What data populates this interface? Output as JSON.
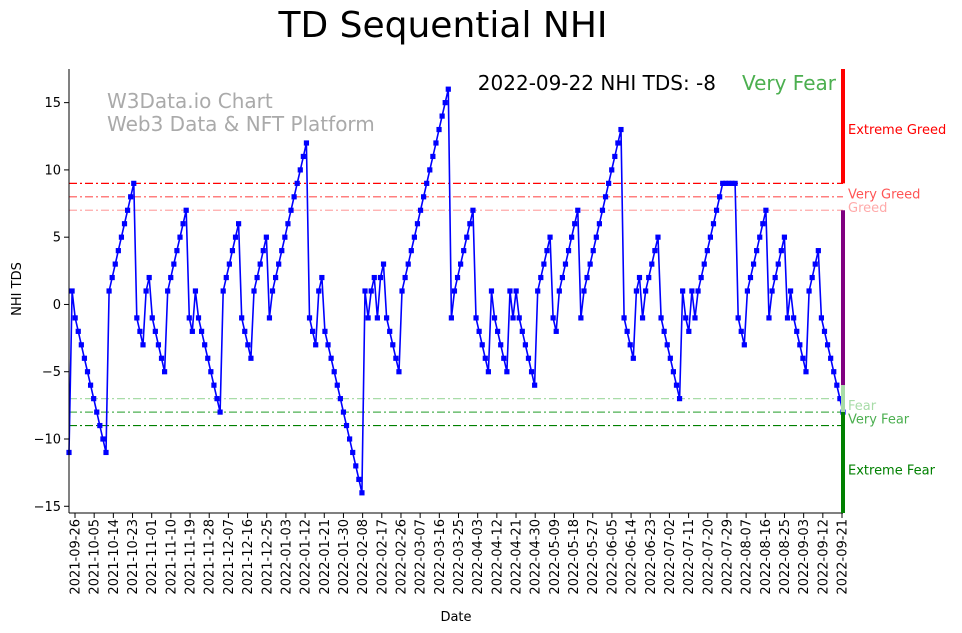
{
  "chart_data": {
    "type": "line",
    "title": "TD Sequential NHI",
    "xlabel": "Date",
    "ylabel": "NHI TDS",
    "ylim": [
      -15.5,
      17.5
    ],
    "yticks": [
      -15,
      -10,
      -5,
      0,
      5,
      10,
      15
    ],
    "ytick_labels": [
      "−15",
      "−10",
      "−5",
      "0",
      "5",
      "10",
      "15"
    ],
    "x_start": "2021-09-26",
    "x_end": "2022-09-22",
    "xtick_labels": [
      "2021-09-26",
      "2021-10-05",
      "2021-10-14",
      "2021-10-23",
      "2021-11-01",
      "2021-11-10",
      "2021-11-19",
      "2021-11-28",
      "2021-12-07",
      "2021-12-16",
      "2021-12-25",
      "2022-01-03",
      "2022-01-12",
      "2022-01-21",
      "2022-01-30",
      "2022-02-08",
      "2022-02-17",
      "2022-02-26",
      "2022-03-07",
      "2022-03-16",
      "2022-03-25",
      "2022-04-03",
      "2022-04-12",
      "2022-04-21",
      "2022-04-30",
      "2022-05-09",
      "2022-05-18",
      "2022-05-27",
      "2022-06-05",
      "2022-06-14",
      "2022-06-23",
      "2022-07-02",
      "2022-07-11",
      "2022-07-20",
      "2022-07-29",
      "2022-08-07",
      "2022-08-16",
      "2022-08-25",
      "2022-09-03",
      "2022-09-12",
      "2022-09-21"
    ],
    "watermark": [
      "W3Data.io Chart",
      "Web3 Data & NFT Platform"
    ],
    "annotation": {
      "text": "2022-09-22 NHI TDS: -8",
      "status": "Very Fear",
      "status_color": "#4caf50"
    },
    "thresholds": [
      {
        "label": "Extreme Greed",
        "value": 9,
        "color": "#ff0000"
      },
      {
        "label": "Very Greed",
        "value": 8,
        "color": "#ff5555"
      },
      {
        "label": "Greed",
        "value": 7,
        "color": "#ffaaaa"
      },
      {
        "label": "Fear",
        "value": -7,
        "color": "#a8dca8"
      },
      {
        "label": "Very Fear",
        "value": -8,
        "color": "#4caf50"
      },
      {
        "label": "Extreme Fear",
        "value": -9,
        "color": "#008000"
      }
    ],
    "zone_labels": [
      {
        "label": "Extreme Greed",
        "y": 13,
        "color": "#ff0000"
      },
      {
        "label": "Very Greed",
        "y": 8.2,
        "color": "#ff5555"
      },
      {
        "label": "Greed",
        "y": 7.2,
        "color": "#ffaaaa"
      },
      {
        "label": "Fear",
        "y": -7.5,
        "color": "#a8dca8"
      },
      {
        "label": "Very Fear",
        "y": -8.5,
        "color": "#4caf50"
      },
      {
        "label": "Extreme Fear",
        "y": -12.3,
        "color": "#008000"
      }
    ],
    "side_bar": [
      {
        "from": 9,
        "to": 17.5,
        "color": "#ff0000"
      },
      {
        "from": -6,
        "to": 7,
        "color": "#800080"
      },
      {
        "from": -8,
        "to": -6,
        "color": "#a8dca8"
      },
      {
        "from": -15.5,
        "to": -8,
        "color": "#008000"
      }
    ],
    "series": [
      {
        "name": "NHI TDS",
        "color": "#0000ff",
        "values": [
          -11,
          1,
          -1,
          -2,
          -3,
          -4,
          -5,
          -6,
          -7,
          -8,
          -9,
          -10,
          -11,
          1,
          2,
          3,
          4,
          5,
          6,
          7,
          8,
          9,
          -1,
          -2,
          -3,
          1,
          2,
          -1,
          -2,
          -3,
          -4,
          -5,
          1,
          2,
          3,
          4,
          5,
          6,
          7,
          -1,
          -2,
          1,
          -1,
          -2,
          -3,
          -4,
          -5,
          -6,
          -7,
          -8,
          1,
          2,
          3,
          4,
          5,
          6,
          -1,
          -2,
          -3,
          -4,
          1,
          2,
          3,
          4,
          5,
          -1,
          1,
          2,
          3,
          4,
          5,
          6,
          7,
          8,
          9,
          10,
          11,
          12,
          -1,
          -2,
          -3,
          1,
          2,
          -2,
          -3,
          -4,
          -5,
          -6,
          -7,
          -8,
          -9,
          -10,
          -11,
          -12,
          -13,
          -14,
          1,
          -1,
          1,
          2,
          -1,
          2,
          3,
          -1,
          -2,
          -3,
          -4,
          -5,
          1,
          2,
          3,
          4,
          5,
          6,
          7,
          8,
          9,
          10,
          11,
          12,
          13,
          14,
          15,
          16,
          -1,
          1,
          2,
          3,
          4,
          5,
          6,
          7,
          -1,
          -2,
          -3,
          -4,
          -5,
          1,
          -1,
          -2,
          -3,
          -4,
          -5,
          1,
          -1,
          1,
          -1,
          -2,
          -3,
          -4,
          -5,
          -6,
          1,
          2,
          3,
          4,
          5,
          -1,
          -2,
          1,
          2,
          3,
          4,
          5,
          6,
          7,
          -1,
          1,
          2,
          3,
          4,
          5,
          6,
          7,
          8,
          9,
          10,
          11,
          12,
          13,
          -1,
          -2,
          -3,
          -4,
          1,
          2,
          -1,
          1,
          2,
          3,
          4,
          5,
          -1,
          -2,
          -3,
          -4,
          -5,
          -6,
          -7,
          1,
          -1,
          -2,
          1,
          -1,
          1,
          2,
          3,
          4,
          5,
          6,
          7,
          8,
          9,
          9,
          9,
          9,
          9,
          -1,
          -2,
          -3,
          1,
          2,
          3,
          4,
          5,
          6,
          7,
          -1,
          1,
          2,
          3,
          4,
          5,
          -1,
          1,
          -1,
          -2,
          -3,
          -4,
          -5,
          1,
          2,
          3,
          4,
          -1,
          -2,
          -3,
          -4,
          -5,
          -6,
          -7,
          -8
        ]
      }
    ]
  }
}
